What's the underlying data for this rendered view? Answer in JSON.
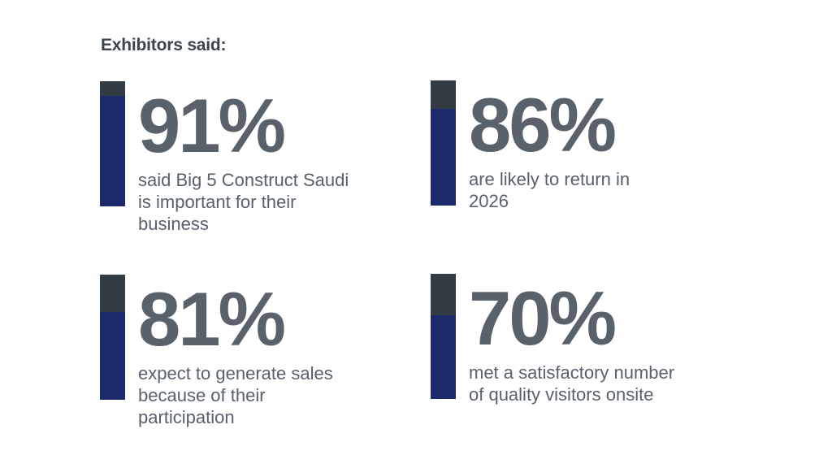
{
  "title": "Exhibitors said:",
  "colors": {
    "background": "#ffffff",
    "title_text": "#3a444d",
    "stat_number": "#59626b",
    "stat_description": "#57616b",
    "bar_unfilled_top": "#333b44",
    "bar_fill_navy": "#1c2a6c"
  },
  "stats": [
    {
      "value": "91%",
      "description": "said Big 5 Construct Saudi\nis important for their\nbusiness",
      "bar_fill_percent": 88
    },
    {
      "value": "86%",
      "description": "are likely to return in\n2026",
      "bar_fill_percent": 77
    },
    {
      "value": "81%",
      "description": "expect to generate sales\nbecause of their\nparticipation",
      "bar_fill_percent": 70
    },
    {
      "value": "70%",
      "description": "met a satisfactory number\nof quality visitors onsite",
      "bar_fill_percent": 67
    }
  ],
  "chart_data": {
    "type": "bar",
    "title": "Exhibitors said:",
    "categories": [
      "said Big 5 Construct Saudi is important for their business",
      "are likely to return in 2026",
      "expect to generate sales because of their participation",
      "met a satisfactory number of quality visitors onsite"
    ],
    "values": [
      91,
      86,
      81,
      70
    ],
    "unit": "%",
    "ylim": [
      0,
      100
    ],
    "orientation": "vertical",
    "legend": "none",
    "grid": "off"
  }
}
